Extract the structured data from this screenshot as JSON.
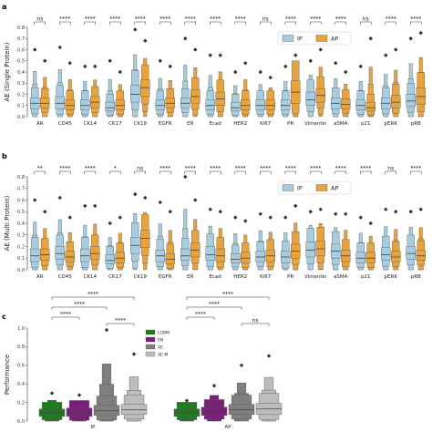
{
  "colors": {
    "ip": "#a9cde0",
    "ap": "#e8a33d",
    "lgbm": "#1e7d1e",
    "en": "#7a1f7a",
    "ae": "#7f7f7f",
    "aem": "#bdbdbd"
  },
  "chart_data": [
    {
      "type": "boxen",
      "panel_label": "a",
      "ylabel": "AE (Single Protein)",
      "ylim": [
        0,
        0.8
      ],
      "yticks": [
        "0.0",
        "0.1",
        "0.2",
        "0.3",
        "0.4",
        "0.5",
        "0.6",
        "0.7",
        "0.8"
      ],
      "categories": [
        "AR",
        "CD45",
        "CK14",
        "CK17",
        "CK19",
        "EGFR",
        "ER",
        "Ecad",
        "HER2",
        "Ki67",
        "PR",
        "Vimentin",
        "aSMA",
        "p21",
        "pERK",
        "pRB"
      ],
      "significance": [
        "ns",
        "****",
        "****",
        "****",
        "****",
        "****",
        "****",
        "****",
        "****",
        "ns",
        "****",
        "****",
        "****",
        "ns",
        "****",
        "****"
      ],
      "legend": [
        "IP",
        "AP"
      ],
      "legend_position": "top-right",
      "series": [
        {
          "name": "IP",
          "median": [
            0.12,
            0.12,
            0.1,
            0.08,
            0.2,
            0.1,
            0.12,
            0.1,
            0.08,
            0.1,
            0.1,
            0.15,
            0.12,
            0.1,
            0.12,
            0.14
          ],
          "q1": [
            0.07,
            0.07,
            0.06,
            0.05,
            0.13,
            0.06,
            0.08,
            0.06,
            0.05,
            0.06,
            0.06,
            0.1,
            0.07,
            0.06,
            0.07,
            0.09
          ],
          "q3": [
            0.17,
            0.18,
            0.15,
            0.13,
            0.28,
            0.15,
            0.17,
            0.15,
            0.13,
            0.15,
            0.15,
            0.22,
            0.17,
            0.15,
            0.17,
            0.2
          ],
          "max": [
            0.6,
            0.62,
            0.45,
            0.5,
            0.78,
            0.5,
            0.7,
            0.55,
            0.4,
            0.4,
            0.45,
            0.5,
            0.48,
            0.45,
            0.55,
            0.7
          ]
        },
        {
          "name": "AP",
          "median": [
            0.12,
            0.1,
            0.13,
            0.1,
            0.26,
            0.12,
            0.18,
            0.16,
            0.1,
            0.1,
            0.22,
            0.19,
            0.11,
            0.08,
            0.13,
            0.18
          ],
          "q1": [
            0.08,
            0.06,
            0.08,
            0.06,
            0.18,
            0.08,
            0.12,
            0.1,
            0.06,
            0.06,
            0.12,
            0.13,
            0.07,
            0.05,
            0.08,
            0.11
          ],
          "q3": [
            0.17,
            0.15,
            0.18,
            0.15,
            0.33,
            0.17,
            0.24,
            0.22,
            0.15,
            0.15,
            0.32,
            0.25,
            0.16,
            0.13,
            0.19,
            0.26
          ],
          "max": [
            0.5,
            0.48,
            0.45,
            0.4,
            0.68,
            0.45,
            0.6,
            0.55,
            0.48,
            0.35,
            0.55,
            0.6,
            0.4,
            0.7,
            0.6,
            0.75
          ]
        }
      ]
    },
    {
      "type": "boxen",
      "panel_label": "b",
      "ylabel": "AE (Multi Protein)",
      "ylim": [
        0,
        0.8
      ],
      "yticks": [
        "0.0",
        "0.1",
        "0.2",
        "0.3",
        "0.4",
        "0.5",
        "0.6",
        "0.7",
        "0.8"
      ],
      "categories": [
        "AR",
        "CD45",
        "CK14",
        "CK17",
        "CK19",
        "EGFR",
        "ER",
        "Ecad",
        "HER2",
        "Ki67",
        "PR",
        "Vimentin",
        "aSMA",
        "p21",
        "pERK",
        "pRB"
      ],
      "significance": [
        "**",
        "****",
        "****",
        "*",
        "ns",
        "****",
        "****",
        "****",
        "****",
        "****",
        "****",
        "****",
        "****",
        "****",
        "ns",
        "****"
      ],
      "legend": [
        "IP",
        "AP"
      ],
      "legend_position": "top-right",
      "series": [
        {
          "name": "IP",
          "median": [
            0.12,
            0.14,
            0.12,
            0.08,
            0.21,
            0.12,
            0.12,
            0.13,
            0.09,
            0.11,
            0.11,
            0.17,
            0.16,
            0.1,
            0.13,
            0.14
          ],
          "q1": [
            0.07,
            0.09,
            0.07,
            0.05,
            0.14,
            0.07,
            0.08,
            0.08,
            0.06,
            0.07,
            0.06,
            0.11,
            0.1,
            0.06,
            0.08,
            0.09
          ],
          "q3": [
            0.18,
            0.2,
            0.18,
            0.13,
            0.28,
            0.17,
            0.18,
            0.2,
            0.14,
            0.16,
            0.16,
            0.24,
            0.22,
            0.15,
            0.19,
            0.2
          ],
          "max": [
            0.6,
            0.62,
            0.55,
            0.4,
            0.65,
            0.58,
            0.8,
            0.52,
            0.45,
            0.48,
            0.45,
            0.5,
            0.48,
            0.45,
            0.52,
            0.5
          ]
        },
        {
          "name": "AP",
          "median": [
            0.13,
            0.11,
            0.14,
            0.1,
            0.27,
            0.09,
            0.17,
            0.12,
            0.1,
            0.12,
            0.16,
            0.18,
            0.12,
            0.1,
            0.11,
            0.12
          ],
          "q1": [
            0.08,
            0.07,
            0.09,
            0.06,
            0.19,
            0.05,
            0.11,
            0.07,
            0.06,
            0.07,
            0.1,
            0.12,
            0.07,
            0.06,
            0.07,
            0.08
          ],
          "q3": [
            0.18,
            0.16,
            0.2,
            0.15,
            0.34,
            0.14,
            0.23,
            0.18,
            0.15,
            0.17,
            0.22,
            0.25,
            0.17,
            0.15,
            0.16,
            0.17
          ],
          "max": [
            0.5,
            0.45,
            0.55,
            0.45,
            0.62,
            0.5,
            0.6,
            0.5,
            0.42,
            0.45,
            0.55,
            0.52,
            0.48,
            0.4,
            0.5,
            0.52
          ]
        }
      ]
    },
    {
      "type": "boxen",
      "panel_label": "c",
      "ylabel": "Performance",
      "ylim": [
        0,
        1.0
      ],
      "yticks": [
        "0.0",
        "0.2",
        "0.4",
        "0.6",
        "0.8",
        "1.0"
      ],
      "categories": [
        "IP",
        "AP"
      ],
      "legend": [
        "LGBM",
        "EN",
        "AE",
        "AE M"
      ],
      "legend_position": "center",
      "significance": [
        {
          "group": "IP",
          "pair": [
            "LGBM",
            "AE M"
          ],
          "label": "****"
        },
        {
          "group": "IP",
          "pair": [
            "LGBM",
            "AE"
          ],
          "label": "****"
        },
        {
          "group": "IP",
          "pair": [
            "LGBM",
            "EN"
          ],
          "label": "****"
        },
        {
          "group": "IP",
          "pair": [
            "AE",
            "AE M"
          ],
          "label": "****"
        },
        {
          "group": "AP",
          "pair": [
            "LGBM",
            "AE M"
          ],
          "label": "****"
        },
        {
          "group": "AP",
          "pair": [
            "LGBM",
            "AE"
          ],
          "label": "****"
        },
        {
          "group": "AP",
          "pair": [
            "LGBM",
            "EN"
          ],
          "label": "****"
        },
        {
          "group": "AP",
          "pair": [
            "AE",
            "AE M"
          ],
          "label": "ns"
        }
      ],
      "series": [
        {
          "name": "LGBM",
          "median": [
            0.09,
            0.09
          ],
          "q1": [
            0.05,
            0.05
          ],
          "q3": [
            0.13,
            0.13
          ],
          "max": [
            0.3,
            0.22
          ]
        },
        {
          "name": "EN",
          "median": [
            0.09,
            0.1
          ],
          "q1": [
            0.05,
            0.06
          ],
          "q3": [
            0.14,
            0.15
          ],
          "max": [
            0.28,
            0.38
          ]
        },
        {
          "name": "AE",
          "median": [
            0.11,
            0.12
          ],
          "q1": [
            0.06,
            0.07
          ],
          "q3": [
            0.17,
            0.18
          ],
          "max": [
            0.98,
            0.6
          ]
        },
        {
          "name": "AE M",
          "median": [
            0.12,
            0.13
          ],
          "q1": [
            0.07,
            0.07
          ],
          "q3": [
            0.18,
            0.19
          ],
          "max": [
            0.72,
            0.7
          ]
        }
      ]
    }
  ]
}
